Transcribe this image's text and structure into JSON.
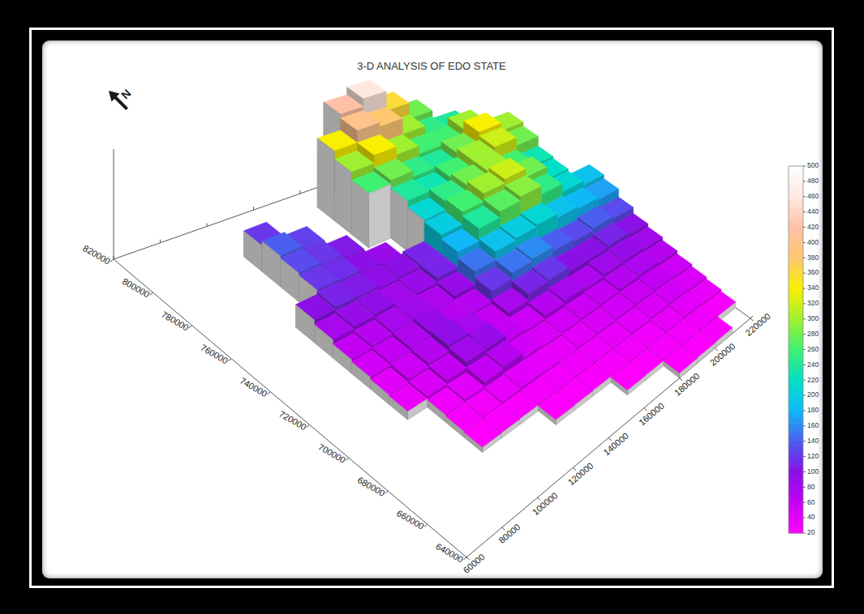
{
  "chart_data": {
    "type": "surface",
    "title": "3-D ANALYSIS OF EDO STATE",
    "annotations": [
      "N"
    ],
    "x": [
      60000,
      70000,
      80000,
      90000,
      100000,
      110000,
      120000,
      130000,
      140000,
      150000,
      160000,
      170000,
      180000,
      190000,
      200000,
      210000,
      220000
    ],
    "y": [
      640000,
      650000,
      660000,
      670000,
      680000,
      690000,
      700000,
      710000,
      720000,
      730000,
      740000,
      750000,
      760000,
      770000,
      780000,
      790000,
      800000,
      810000,
      820000
    ],
    "z": [
      [
        null,
        null,
        null,
        null,
        null,
        null,
        null,
        null,
        null,
        null,
        null,
        null,
        20,
        22,
        24,
        null
      ],
      [
        null,
        null,
        null,
        null,
        null,
        null,
        null,
        null,
        null,
        null,
        20,
        22,
        25,
        28,
        30,
        26
      ],
      [
        null,
        null,
        null,
        null,
        null,
        null,
        null,
        20,
        22,
        24,
        25,
        28,
        30,
        35,
        40,
        35
      ],
      [
        null,
        null,
        null,
        null,
        20,
        22,
        24,
        26,
        28,
        30,
        32,
        35,
        40,
        45,
        50,
        45
      ],
      [
        null,
        null,
        null,
        null,
        24,
        28,
        35,
        40,
        38,
        35,
        40,
        45,
        50,
        55,
        60,
        55
      ],
      [
        null,
        null,
        null,
        null,
        30,
        40,
        60,
        70,
        50,
        45,
        50,
        55,
        60,
        70,
        75,
        70
      ],
      [
        null,
        null,
        null,
        35,
        45,
        60,
        85,
        90,
        60,
        55,
        70,
        80,
        75,
        85,
        90,
        85
      ],
      [
        null,
        null,
        null,
        40,
        55,
        70,
        95,
        80,
        60,
        80,
        110,
        120,
        100,
        100,
        110,
        100
      ],
      [
        null,
        null,
        null,
        50,
        60,
        75,
        90,
        70,
        70,
        120,
        150,
        160,
        140,
        130,
        140,
        130
      ],
      [
        null,
        null,
        null,
        60,
        70,
        80,
        85,
        75,
        90,
        150,
        190,
        200,
        210,
        190,
        180,
        170
      ],
      [
        null,
        null,
        null,
        80,
        90,
        95,
        85,
        90,
        110,
        180,
        240,
        270,
        290,
        250,
        210,
        190
      ],
      [
        null,
        null,
        null,
        100,
        110,
        105,
        95,
        100,
        110,
        200,
        260,
        300,
        320,
        280,
        220,
        null
      ],
      [
        null,
        null,
        null,
        null,
        120,
        115,
        100,
        90,
        null,
        210,
        250,
        280,
        300,
        260,
        230,
        null
      ],
      [
        null,
        null,
        null,
        null,
        130,
        120,
        105,
        null,
        null,
        240,
        230,
        260,
        300,
        320,
        280,
        null
      ],
      [
        null,
        null,
        null,
        null,
        140,
        125,
        null,
        null,
        260,
        280,
        250,
        240,
        280,
        340,
        300,
        null
      ],
      [
        null,
        null,
        null,
        null,
        120,
        null,
        null,
        null,
        300,
        340,
        300,
        260,
        260,
        300,
        null,
        null
      ],
      [
        null,
        null,
        null,
        null,
        null,
        null,
        null,
        null,
        340,
        400,
        380,
        300,
        250,
        240,
        null,
        null
      ],
      [
        null,
        null,
        null,
        null,
        null,
        null,
        null,
        null,
        null,
        420,
        460,
        360,
        280,
        null,
        null,
        null
      ]
    ],
    "xlim": [
      60000,
      220000
    ],
    "xticks": [
      60000,
      80000,
      100000,
      120000,
      140000,
      160000,
      180000,
      200000,
      220000
    ],
    "ylim": [
      640000,
      820000
    ],
    "yticks": [
      640000,
      660000,
      680000,
      700000,
      720000,
      740000,
      760000,
      780000,
      800000,
      820000
    ],
    "zlim": [
      0,
      500
    ],
    "colorbar": {
      "range": [
        20,
        500
      ],
      "ticks": [
        20,
        40,
        60,
        80,
        100,
        120,
        140,
        160,
        180,
        200,
        220,
        240,
        260,
        280,
        300,
        320,
        340,
        360,
        380,
        400,
        420,
        440,
        460,
        480,
        500
      ]
    }
  }
}
